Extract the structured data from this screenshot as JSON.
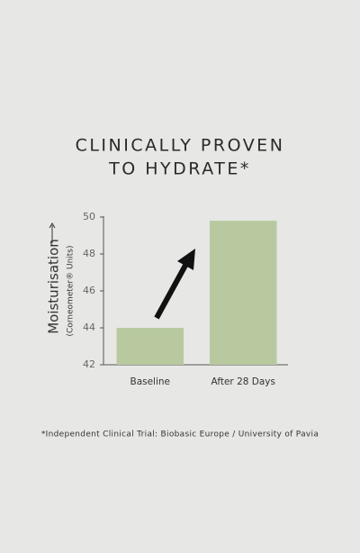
{
  "chart_data": {
    "type": "bar",
    "title": [
      "CLINICALLY PROVEN",
      "TO HYDRATE*"
    ],
    "y_label": "Moisturisation",
    "y_sublabel": "(Corneometer® Units)",
    "categories": [
      "Baseline",
      "After 28 Days"
    ],
    "values": [
      44,
      49.8
    ],
    "color": "#b8c9a0",
    "ylim": [
      42,
      50
    ],
    "yticks": [
      42,
      44,
      46,
      48,
      50
    ],
    "footnote": "*Independent Clinical Trial: Biobasic Europe / University of Pavia"
  }
}
